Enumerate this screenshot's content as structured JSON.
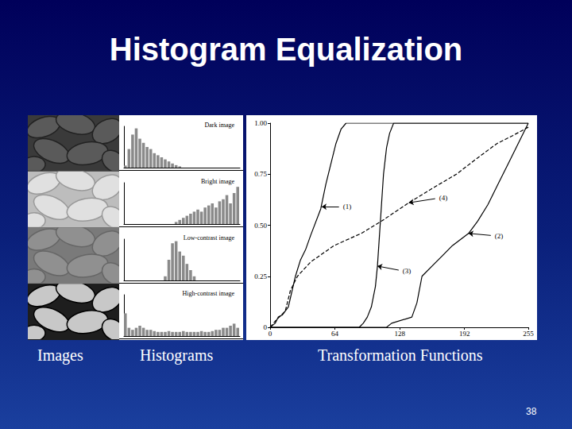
{
  "slide": {
    "title": "Histogram Equalization",
    "captions": [
      "Images",
      "Histograms",
      "Transformation Functions"
    ],
    "page": "38"
  },
  "chart_data": [
    {
      "type": "histogram",
      "title": "Dark image",
      "color": "#8a8a8a",
      "tick_labels": false,
      "grid": false,
      "bins": [
        0,
        8,
        16,
        24,
        32,
        40,
        48,
        56,
        64,
        72,
        80,
        88,
        96,
        104,
        112,
        120,
        128,
        136,
        144,
        152,
        160,
        168,
        176,
        184,
        192,
        200,
        208,
        216,
        224,
        232,
        240,
        248,
        256
      ],
      "counts": [
        0.05,
        0.45,
        0.8,
        0.95,
        0.7,
        0.6,
        0.5,
        0.45,
        0.35,
        0.3,
        0.25,
        0.2,
        0.15,
        0.1,
        0.06,
        0.03,
        0,
        0,
        0,
        0,
        0,
        0,
        0,
        0,
        0,
        0,
        0,
        0,
        0,
        0,
        0,
        0
      ],
      "xlim": [
        0,
        256
      ],
      "ylim": [
        0,
        1
      ]
    },
    {
      "type": "histogram",
      "title": "Bright image",
      "color": "#8a8a8a",
      "tick_labels": false,
      "grid": false,
      "bins": [
        0,
        8,
        16,
        24,
        32,
        40,
        48,
        56,
        64,
        72,
        80,
        88,
        96,
        104,
        112,
        120,
        128,
        136,
        144,
        152,
        160,
        168,
        176,
        184,
        192,
        200,
        208,
        216,
        224,
        232,
        240,
        248,
        256
      ],
      "counts": [
        0,
        0,
        0,
        0,
        0,
        0,
        0,
        0,
        0,
        0,
        0,
        0,
        0,
        0,
        0.05,
        0.1,
        0.15,
        0.2,
        0.25,
        0.3,
        0.35,
        0.3,
        0.4,
        0.45,
        0.5,
        0.4,
        0.55,
        0.6,
        0.7,
        0.5,
        0.75,
        0.9
      ],
      "xlim": [
        0,
        256
      ],
      "ylim": [
        0,
        1
      ]
    },
    {
      "type": "histogram",
      "title": "Low-contrast image",
      "color": "#8a8a8a",
      "tick_labels": false,
      "grid": false,
      "bins": [
        0,
        8,
        16,
        24,
        32,
        40,
        48,
        56,
        64,
        72,
        80,
        88,
        96,
        104,
        112,
        120,
        128,
        136,
        144,
        152,
        160,
        168,
        176,
        184,
        192,
        200,
        208,
        216,
        224,
        232,
        240,
        248,
        256
      ],
      "counts": [
        0,
        0,
        0,
        0,
        0,
        0,
        0,
        0,
        0,
        0,
        0,
        0.1,
        0.5,
        0.9,
        0.95,
        0.7,
        0.6,
        0.4,
        0.25,
        0.1,
        0,
        0,
        0,
        0,
        0,
        0,
        0,
        0,
        0,
        0,
        0,
        0
      ],
      "xlim": [
        0,
        256
      ],
      "ylim": [
        0,
        1
      ]
    },
    {
      "type": "histogram",
      "title": "High-contrast image",
      "color": "#8a8a8a",
      "tick_labels": false,
      "grid": false,
      "bins": [
        0,
        8,
        16,
        24,
        32,
        40,
        48,
        56,
        64,
        72,
        80,
        88,
        96,
        104,
        112,
        120,
        128,
        136,
        144,
        152,
        160,
        168,
        176,
        184,
        192,
        200,
        208,
        216,
        224,
        232,
        240,
        248,
        256
      ],
      "counts": [
        0.55,
        0.2,
        0.15,
        0.2,
        0.25,
        0.2,
        0.15,
        0.15,
        0.12,
        0.1,
        0.1,
        0.1,
        0.12,
        0.1,
        0.1,
        0.1,
        0.12,
        0.1,
        0.1,
        0.1,
        0.1,
        0.12,
        0.1,
        0.1,
        0.12,
        0.15,
        0.15,
        0.2,
        0.2,
        0.25,
        0.3,
        0.2
      ],
      "xlim": [
        0,
        256
      ],
      "ylim": [
        0,
        1
      ]
    },
    {
      "type": "line",
      "grid": false,
      "xlim": [
        0,
        255
      ],
      "xticks": [
        0,
        64,
        128,
        192,
        255
      ],
      "ylim": [
        0,
        1
      ],
      "yticks": [
        0,
        0.25,
        {
          "value": 0.5,
          "label": "0.50"
        },
        0.75,
        {
          "value": 1,
          "label": "1.00"
        }
      ],
      "series": [
        {
          "name": "(1)",
          "color": "#000000",
          "line_style": "solid",
          "x": [
            0,
            5,
            8,
            12,
            18,
            25,
            30,
            35,
            40,
            50,
            55,
            60,
            65,
            70,
            75,
            255
          ],
          "values": [
            0,
            0.02,
            0.05,
            0.06,
            0.1,
            0.25,
            0.33,
            0.38,
            0.45,
            0.58,
            0.7,
            0.8,
            0.9,
            0.97,
            1,
            1
          ],
          "annotation": {
            "x": 68,
            "y": 0.59,
            "arrow_x": 51,
            "arrow_y": 0.59
          }
        },
        {
          "name": "(2)",
          "color": "#000000",
          "line_style": "solid",
          "x": [
            0,
            115,
            120,
            140,
            145,
            150,
            160,
            170,
            180,
            196,
            205,
            215,
            225,
            235,
            245,
            255
          ],
          "values": [
            0,
            0,
            0.02,
            0.05,
            0.12,
            0.25,
            0.3,
            0.35,
            0.4,
            0.46,
            0.52,
            0.6,
            0.7,
            0.8,
            0.9,
            1
          ],
          "annotation": {
            "x": 218,
            "y": 0.45,
            "arrow_x": 196,
            "arrow_y": 0.46
          }
        },
        {
          "name": "(3)",
          "color": "#000000",
          "line_style": "solid",
          "x": [
            0,
            88,
            92,
            96,
            100,
            104,
            106,
            108,
            110,
            112,
            115,
            118,
            122,
            255
          ],
          "values": [
            0,
            0,
            0.02,
            0.05,
            0.1,
            0.2,
            0.3,
            0.45,
            0.6,
            0.75,
            0.88,
            0.95,
            1,
            1
          ],
          "annotation": {
            "x": 127,
            "y": 0.28,
            "arrow_x": 106,
            "arrow_y": 0.3
          }
        },
        {
          "name": "(4)",
          "color": "#000000",
          "line_style": "dashed",
          "x": [
            0,
            5,
            15,
            20,
            27,
            40,
            63,
            90,
            110,
            137,
            160,
            184,
            205,
            224,
            240,
            255
          ],
          "values": [
            0,
            0.03,
            0.08,
            0.18,
            0.25,
            0.32,
            0.4,
            0.46,
            0.52,
            0.61,
            0.68,
            0.75,
            0.83,
            0.9,
            0.94,
            0.98
          ],
          "annotation": {
            "x": 163,
            "y": 0.63,
            "arrow_x": 137,
            "arrow_y": 0.61
          }
        }
      ]
    }
  ]
}
